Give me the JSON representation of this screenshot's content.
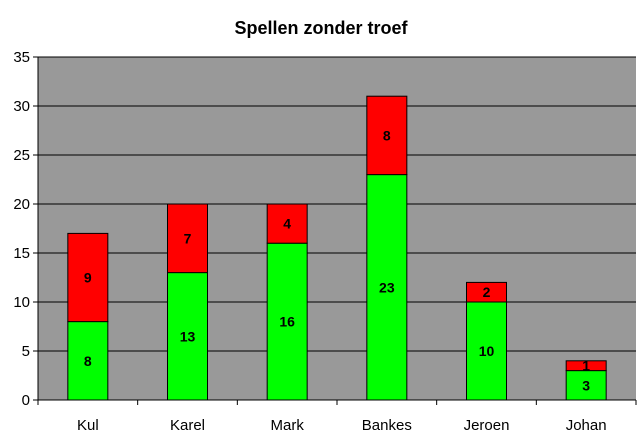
{
  "chart_data": {
    "type": "bar",
    "stacked": true,
    "title": "Spellen zonder troef",
    "xlabel": "",
    "ylabel": "",
    "categories": [
      "Kul",
      "Karel",
      "Mark",
      "Bankes",
      "Jeroen",
      "Johan"
    ],
    "series": [
      {
        "color": "#00ff00",
        "values": [
          8,
          13,
          16,
          23,
          10,
          3
        ]
      },
      {
        "color": "#ff0000",
        "values": [
          9,
          7,
          4,
          8,
          2,
          1
        ]
      }
    ],
    "ylim": [
      0,
      35
    ],
    "yticks": [
      0,
      5,
      10,
      15,
      20,
      25,
      30,
      35
    ],
    "grid": true,
    "legend": "none",
    "plot_background": "#999999"
  }
}
